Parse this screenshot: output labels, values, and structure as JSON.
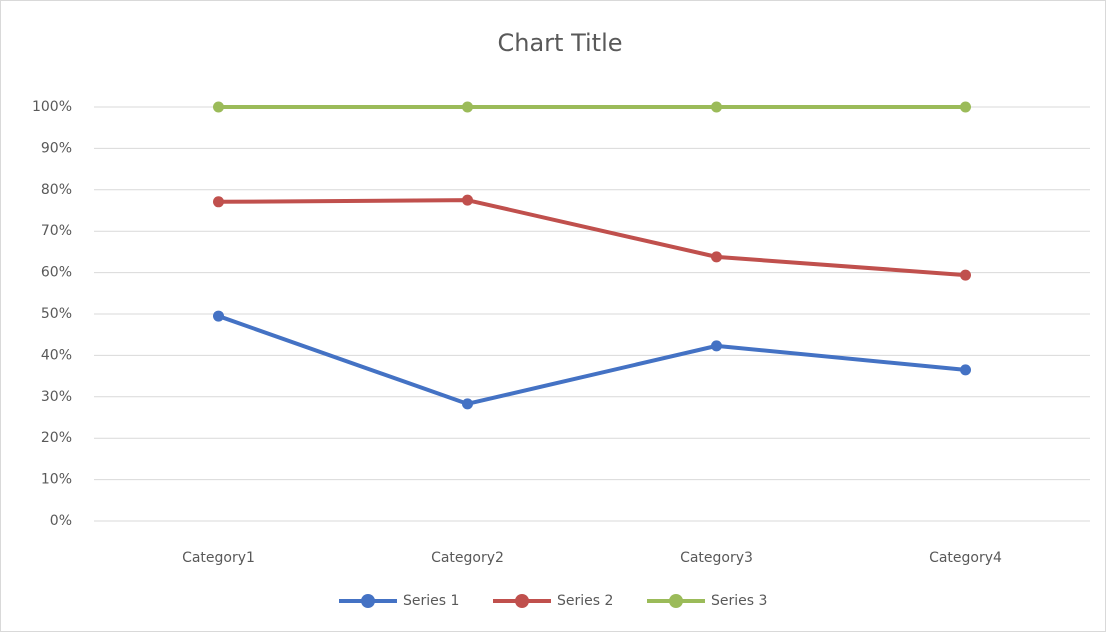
{
  "chart_data": {
    "type": "line",
    "title": "Chart Title",
    "categories": [
      "Category1",
      "Category2",
      "Category3",
      "Category4"
    ],
    "series": [
      {
        "name": "Series 1",
        "color": "#4472c4",
        "values": [
          49.5,
          28.3,
          42.3,
          36.5
        ]
      },
      {
        "name": "Series 2",
        "color": "#c0504d",
        "values": [
          77.1,
          77.5,
          63.8,
          59.4
        ]
      },
      {
        "name": "Series 3",
        "color": "#9bbb59",
        "values": [
          100,
          100,
          100,
          100
        ]
      }
    ],
    "ylim": [
      0,
      100
    ],
    "yticks": [
      {
        "value": 0,
        "label": "0%"
      },
      {
        "value": 10,
        "label": "10%"
      },
      {
        "value": 20,
        "label": "20%"
      },
      {
        "value": 30,
        "label": "30%"
      },
      {
        "value": 40,
        "label": "40%"
      },
      {
        "value": 50,
        "label": "50%"
      },
      {
        "value": 60,
        "label": "60%"
      },
      {
        "value": 70,
        "label": "70%"
      },
      {
        "value": 80,
        "label": "80%"
      },
      {
        "value": 90,
        "label": "90%"
      },
      {
        "value": 100,
        "label": "100%"
      }
    ],
    "grid": true,
    "legend": "bottom"
  }
}
